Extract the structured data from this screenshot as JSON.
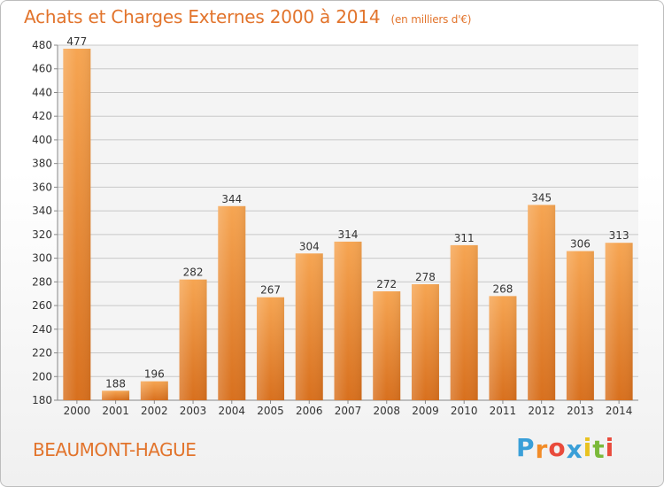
{
  "chart_data": {
    "type": "bar",
    "title": "Achats et Charges Externes 2000 à 2014",
    "subtitle": "(en milliers d'€)",
    "xlabel": "",
    "ylabel": "",
    "categories": [
      "2000",
      "2001",
      "2002",
      "2003",
      "2004",
      "2005",
      "2006",
      "2007",
      "2008",
      "2009",
      "2010",
      "2011",
      "2012",
      "2013",
      "2014"
    ],
    "values": [
      477,
      188,
      196,
      282,
      344,
      267,
      304,
      314,
      272,
      278,
      311,
      268,
      345,
      306,
      313
    ],
    "ylim": [
      180,
      480
    ],
    "yticks": [
      180,
      200,
      220,
      240,
      260,
      280,
      300,
      320,
      340,
      360,
      380,
      400,
      420,
      440,
      460,
      480
    ],
    "grid": "horizontal",
    "bar_color_top": "#f6a552",
    "bar_color_bottom": "#d8701e"
  },
  "location": "BEAUMONT-HAGUE",
  "logo": {
    "letters": [
      "P",
      "r",
      "o",
      "x",
      "i",
      "t",
      "i"
    ],
    "colors": [
      "#3a9fd8",
      "#f28c28",
      "#e94b3c",
      "#3a9fd8",
      "#e9c21f",
      "#7bb93a",
      "#e94b3c"
    ]
  },
  "colors": {
    "accent": "#e2742c",
    "grid": "#c8c8c8",
    "axis_text": "#333333"
  }
}
